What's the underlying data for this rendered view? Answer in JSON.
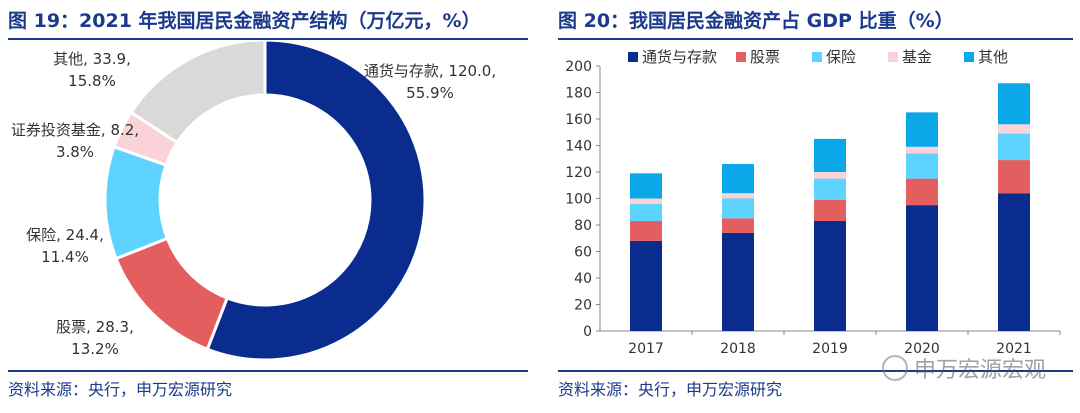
{
  "left": {
    "title": "图 19：2021 年我国居民金融资产结构（万亿元，%）",
    "source": "资料来源：央行，申万宏源研究"
  },
  "right": {
    "title": "图 20：我国居民金融资产占 GDP 比重（%）",
    "source": "资料来源：央行，申万宏源研究"
  },
  "watermark": "申万宏源宏观",
  "chart_data": [
    {
      "type": "pie",
      "title": "图 19：2021 年我国居民金融资产结构（万亿元，%）",
      "slices": [
        {
          "label": "通货与存款",
          "value": 120.0,
          "percent": "55.9%",
          "value_text": "120.0",
          "color": "#0b2c8f"
        },
        {
          "label": "股票",
          "value": 28.3,
          "percent": "13.2%",
          "value_text": "28.3",
          "color": "#e35f5f"
        },
        {
          "label": "保险",
          "value": 24.4,
          "percent": "11.4%",
          "value_text": "24.4",
          "color": "#5fd3ff"
        },
        {
          "label": "证券投资基金",
          "value": 8.2,
          "percent": "3.8%",
          "value_text": "8.2",
          "color": "#f9d3d8"
        },
        {
          "label": "其他",
          "value": 33.9,
          "percent": "15.8%",
          "value_text": "33.9",
          "color": "#d9d9d9"
        }
      ]
    },
    {
      "type": "bar",
      "stacked": true,
      "title": "图 20：我国居民金融资产占 GDP 比重（%）",
      "categories": [
        "2017",
        "2018",
        "2019",
        "2020",
        "2021"
      ],
      "ylim": [
        0,
        200
      ],
      "yticks": [
        0,
        20,
        40,
        60,
        80,
        100,
        120,
        140,
        160,
        180,
        200
      ],
      "legend_position": "top",
      "grid": false,
      "series": [
        {
          "name": "通货与存款",
          "color": "#0b2c8f",
          "values": [
            68,
            74,
            83,
            95,
            104
          ]
        },
        {
          "name": "股票",
          "color": "#e35f5f",
          "values": [
            15,
            11,
            16,
            20,
            25
          ]
        },
        {
          "name": "保险",
          "color": "#5fd3ff",
          "values": [
            13,
            15,
            16,
            19,
            20
          ]
        },
        {
          "name": "基金",
          "color": "#f9d3d8",
          "values": [
            4,
            4,
            5,
            5,
            7
          ]
        },
        {
          "name": "其他",
          "color": "#0aa8e8",
          "values": [
            19,
            22,
            25,
            26,
            31
          ]
        }
      ]
    }
  ]
}
